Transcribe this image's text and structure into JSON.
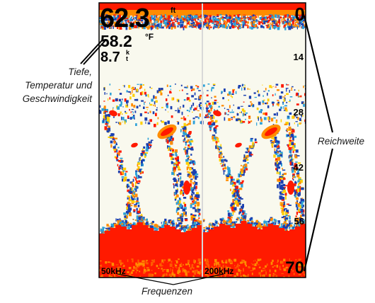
{
  "screen": {
    "depth": {
      "value": "62.3",
      "unit": "ft"
    },
    "temperature": {
      "value": "58.2",
      "unit": "°F"
    },
    "speed": {
      "value": "8.7",
      "unit": "kt"
    },
    "range_scale": [
      "0",
      "14",
      "28",
      "42",
      "56",
      "70"
    ],
    "frequencies": [
      "50kHz",
      "200kHz"
    ]
  },
  "callouts": {
    "readouts": [
      "Tiefe,",
      "Temperatur und",
      "Geschwindigkeit"
    ],
    "range": "Reichweite",
    "frequencies": "Frequenzen"
  },
  "colors": {
    "water_background": "#f9f9ee",
    "strong_return": "#ff1a00",
    "medium_return": "#ff8c00",
    "weak_return": "#1a3fb0",
    "divider": "#d8d8d8",
    "frame": "#000000"
  }
}
